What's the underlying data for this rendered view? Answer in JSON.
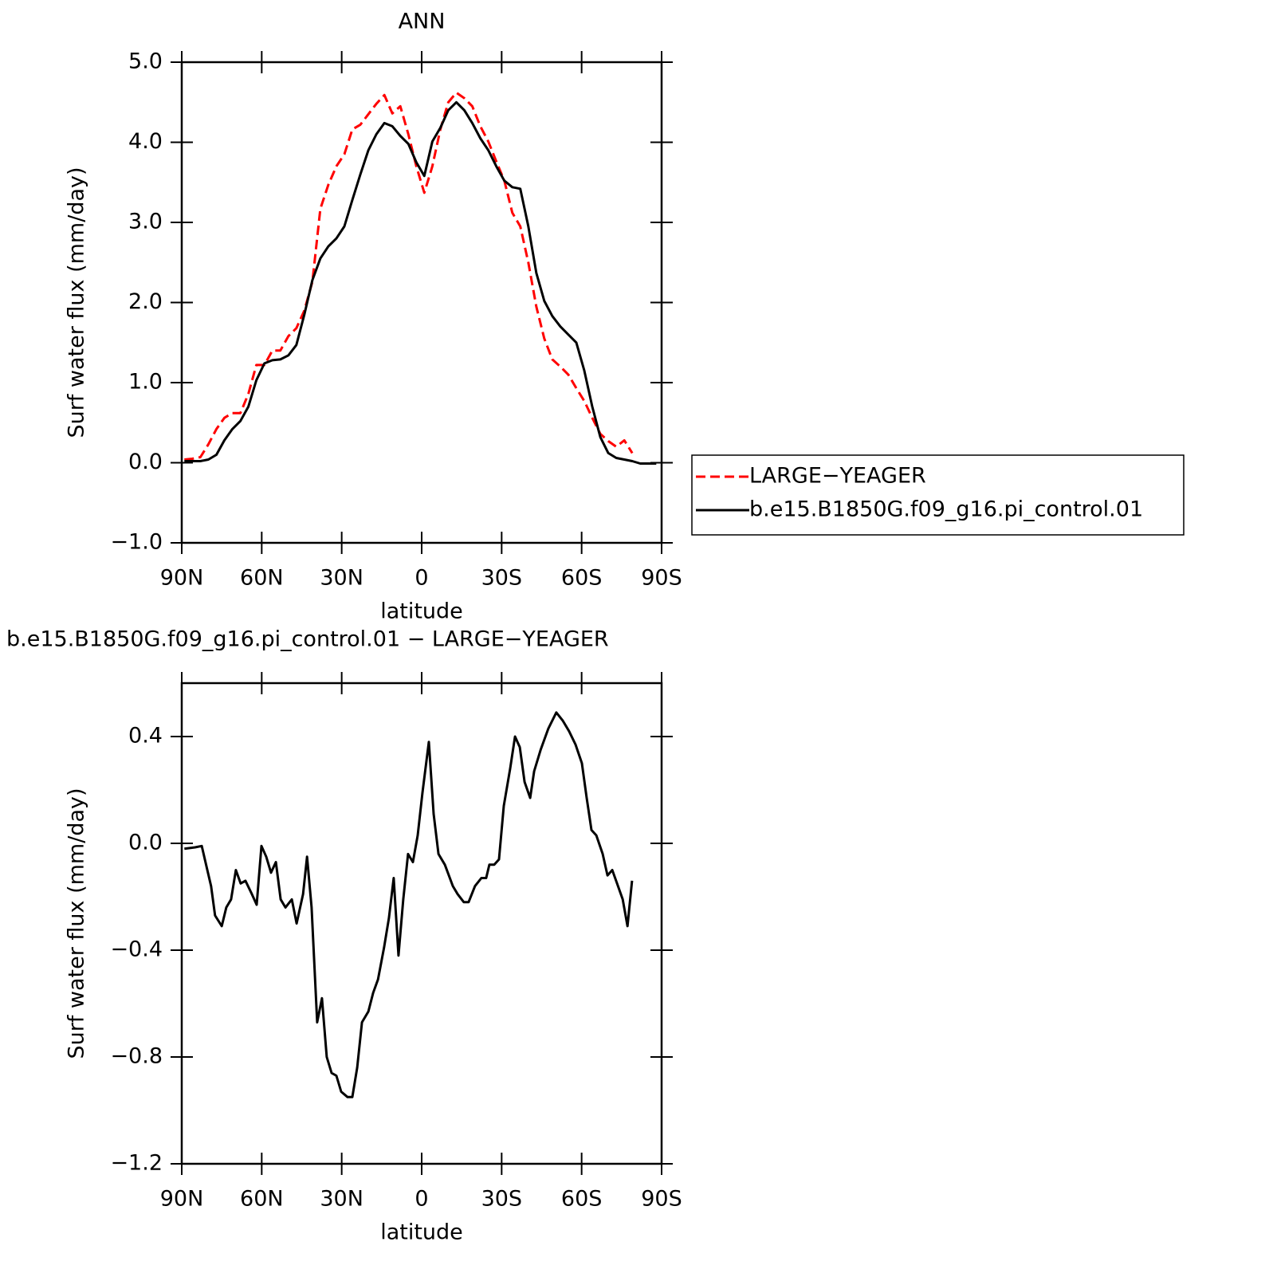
{
  "chart_data": [
    {
      "type": "line",
      "title": "ANN",
      "xlabel": "latitude",
      "ylabel": "Surf water flux (mm/day)",
      "x": [
        89,
        86,
        83,
        80,
        77,
        74,
        71,
        68,
        65,
        62,
        59,
        56,
        53,
        50,
        47,
        44,
        41,
        38,
        35,
        32,
        29,
        26,
        23,
        20,
        17,
        14,
        11,
        8,
        5,
        2,
        -1,
        -4,
        -7,
        -10,
        -13,
        -16,
        -19,
        -22,
        -25,
        -28,
        -31,
        -34,
        -37,
        -40,
        -43,
        -46,
        -49,
        -52,
        -55,
        -58,
        -61,
        -64,
        -67,
        -70,
        -73,
        -76,
        -79,
        -82,
        -85,
        -88
      ],
      "series": [
        {
          "name": "LARGE−YEAGER",
          "color": "#ff0000",
          "dashed": true,
          "values": [
            0.04,
            0.05,
            0.07,
            0.23,
            0.42,
            0.56,
            0.62,
            0.62,
            0.86,
            1.22,
            1.22,
            1.4,
            1.4,
            1.58,
            1.68,
            1.9,
            2.26,
            3.17,
            3.47,
            3.7,
            3.85,
            4.16,
            4.22,
            4.35,
            4.48,
            4.59,
            4.36,
            4.45,
            4.1,
            3.7,
            3.37,
            3.7,
            4.16,
            4.5,
            4.62,
            4.55,
            4.45,
            4.2,
            4.01,
            3.76,
            3.52,
            3.12,
            2.95,
            2.5,
            1.95,
            1.55,
            1.29,
            1.2,
            1.1,
            0.93,
            0.77,
            0.56,
            0.36,
            0.27,
            0.2,
            0.28,
            0.12,
            null,
            null,
            null
          ]
        },
        {
          "name": "b.e15.B1850G.f09_g16.pi_control.01",
          "color": "#000000",
          "dashed": false,
          "values": [
            0.02,
            0.02,
            0.02,
            0.04,
            0.1,
            0.28,
            0.42,
            0.52,
            0.7,
            1.03,
            1.24,
            1.28,
            1.29,
            1.34,
            1.47,
            1.85,
            2.28,
            2.55,
            2.7,
            2.8,
            2.95,
            3.28,
            3.6,
            3.9,
            4.1,
            4.24,
            4.2,
            4.08,
            3.98,
            3.75,
            3.58,
            4.01,
            4.18,
            4.4,
            4.5,
            4.4,
            4.24,
            4.05,
            3.9,
            3.7,
            3.52,
            3.44,
            3.42,
            2.95,
            2.37,
            2.02,
            1.83,
            1.7,
            1.6,
            1.5,
            1.15,
            0.7,
            0.32,
            0.12,
            0.06,
            0.04,
            0.02,
            -0.01,
            -0.01,
            -0.01
          ]
        }
      ],
      "xlim": [
        90,
        -90
      ],
      "xticks": [
        {
          "value": 90,
          "label": "90N"
        },
        {
          "value": 60,
          "label": "60N"
        },
        {
          "value": 30,
          "label": "30N"
        },
        0,
        {
          "value": -30,
          "label": "30S"
        },
        {
          "value": -60,
          "label": "60S"
        },
        {
          "value": -90,
          "label": "90S"
        }
      ],
      "ylim": [
        -1,
        5
      ],
      "yticks": [
        {
          "value": -1,
          "label": "−1.0"
        },
        {
          "value": 0,
          "label": "0.0"
        },
        {
          "value": 1,
          "label": "1.0"
        },
        {
          "value": 2,
          "label": "2.0"
        },
        {
          "value": 3,
          "label": "3.0"
        },
        {
          "value": 4,
          "label": "4.0"
        },
        {
          "value": 5,
          "label": "5.0"
        }
      ],
      "legend": "outside-right",
      "grid": false
    },
    {
      "type": "line",
      "title": "b.e15.B1850G.f09_g16.pi_control.01 − LARGE−YEAGER",
      "xlabel": "latitude",
      "ylabel": "Surf water flux (mm/day)",
      "x": [
        89,
        85,
        82.5,
        80.4,
        79,
        77.5,
        75,
        73.3,
        71.5,
        69.7,
        67.9,
        66.1,
        63.7,
        61.9,
        60.1,
        58.3,
        56.5,
        54.7,
        52.9,
        51.1,
        48.7,
        46.9,
        44.5,
        43,
        41.3,
        39.2,
        37.4,
        35.6,
        33.8,
        32,
        30.2,
        27.8,
        26,
        24.2,
        22.4,
        20,
        18.2,
        16.4,
        14.1,
        12.3,
        10.5,
        8.7,
        6.9,
        5.1,
        3.3,
        1.5,
        -0.3,
        -2.7,
        -4.5,
        -6.3,
        -8.7,
        -11.7,
        -13.5,
        -15.8,
        -17.6,
        -20,
        -22.4,
        -24.2,
        -25.4,
        -27.2,
        -29,
        -30.8,
        -33.2,
        -35,
        -36.8,
        -38.6,
        -40.7,
        -42.2,
        -44.6,
        -47.5,
        -50.5,
        -52.9,
        -55.3,
        -57.7,
        -60.1,
        -61.9,
        -63.7,
        -65.5,
        -67.9,
        -69.7,
        -71.5,
        -73.3,
        -75.4,
        -77.2,
        -78.9
      ],
      "series": [
        {
          "color": "#000000",
          "dashed": false,
          "values": [
            -0.02,
            -0.015,
            -0.01,
            -0.1,
            -0.16,
            -0.27,
            -0.31,
            -0.24,
            -0.21,
            -0.1,
            -0.15,
            -0.14,
            -0.19,
            -0.23,
            -0.01,
            -0.05,
            -0.11,
            -0.07,
            -0.21,
            -0.24,
            -0.21,
            -0.3,
            -0.19,
            -0.05,
            -0.24,
            -0.67,
            -0.58,
            -0.8,
            -0.86,
            -0.87,
            -0.93,
            -0.95,
            -0.95,
            -0.84,
            -0.67,
            -0.63,
            -0.56,
            -0.51,
            -0.39,
            -0.28,
            -0.13,
            -0.42,
            -0.21,
            -0.04,
            -0.07,
            0.03,
            0.19,
            0.38,
            0.11,
            -0.04,
            -0.08,
            -0.16,
            -0.19,
            -0.22,
            -0.22,
            -0.16,
            -0.13,
            -0.13,
            -0.08,
            -0.08,
            -0.06,
            0.14,
            0.28,
            0.4,
            0.36,
            0.23,
            0.17,
            0.27,
            0.35,
            0.43,
            0.49,
            0.46,
            0.42,
            0.37,
            0.3,
            0.17,
            0.05,
            0.03,
            -0.04,
            -0.12,
            -0.1,
            -0.15,
            -0.21,
            -0.31,
            -0.14
          ]
        }
      ],
      "xlim": [
        90,
        -90
      ],
      "xticks": [
        {
          "value": 90,
          "label": "90N"
        },
        {
          "value": 60,
          "label": "60N"
        },
        {
          "value": 30,
          "label": "30N"
        },
        0,
        {
          "value": -30,
          "label": "30S"
        },
        {
          "value": -60,
          "label": "60S"
        },
        {
          "value": -90,
          "label": "90S"
        }
      ],
      "ylim": [
        -1.2,
        0.6
      ],
      "yticks": [
        {
          "value": -1.2,
          "label": "−1.2"
        },
        {
          "value": -0.8,
          "label": "−0.8"
        },
        {
          "value": -0.4,
          "label": "−0.4"
        },
        {
          "value": 0,
          "label": "0.0"
        },
        {
          "value": 0.4,
          "label": "0.4"
        }
      ],
      "grid": false
    }
  ]
}
